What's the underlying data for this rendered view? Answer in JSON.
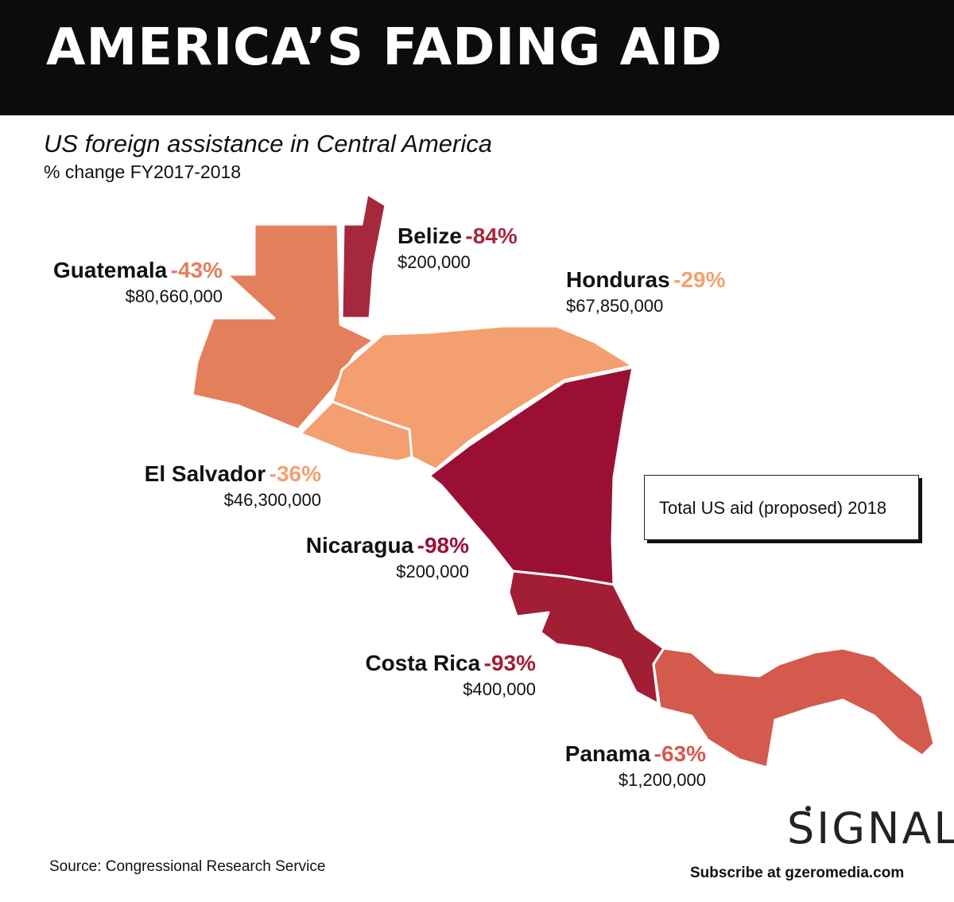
{
  "header": {
    "title": "AMERICA’S FADING AID"
  },
  "subtitle": "US foreign assistance in Central America",
  "subnote": "% change FY2017-2018",
  "colors": {
    "guatemala": "#e47f5b",
    "belize": "#a6283d",
    "honduras": "#f49f6f",
    "el_salvador": "#f49f6f",
    "nicaragua": "#9a1034",
    "costa_rica": "#a11e35",
    "panama": "#d35a4d",
    "dark_text": "#111111"
  },
  "countries": [
    {
      "key": "guatemala",
      "name": "Guatemala",
      "change": "-43%",
      "aid": "$80,660,000"
    },
    {
      "key": "belize",
      "name": "Belize",
      "change": "-84%",
      "aid": "$200,000"
    },
    {
      "key": "honduras",
      "name": "Honduras",
      "change": "-29%",
      "aid": "$67,850,000"
    },
    {
      "key": "el_salvador",
      "name": "El Salvador",
      "change": "-36%",
      "aid": "$46,300,000"
    },
    {
      "key": "nicaragua",
      "name": "Nicaragua",
      "change": "-98%",
      "aid": "$200,000"
    },
    {
      "key": "costa_rica",
      "name": "Costa Rica",
      "change": "-93%",
      "aid": "$400,000"
    },
    {
      "key": "panama",
      "name": "Panama",
      "change": "-63%",
      "aid": "$1,200,000"
    }
  ],
  "legend": {
    "text": "Total US aid (proposed) 2018"
  },
  "footer": {
    "source": "Source: Congressional Research Service",
    "logo": "SIGNAL",
    "subscribe": "Subscribe at gzeromedia.com"
  }
}
